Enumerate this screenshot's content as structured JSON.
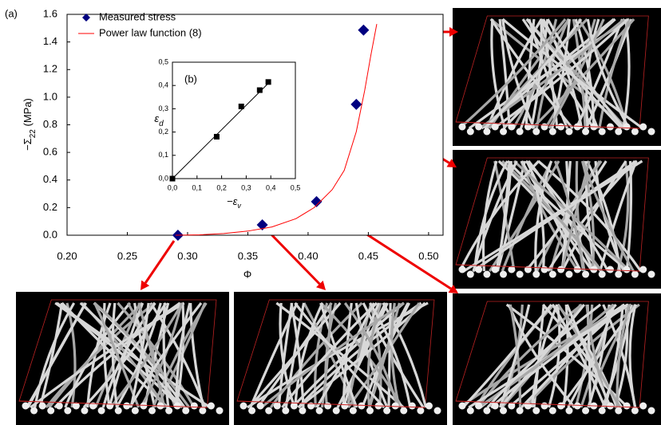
{
  "panel_label_a": "(a)",
  "chart_data": [
    {
      "type": "line",
      "ylabel": [
        "−Σ",
        "22",
        " (MPa)"
      ],
      "xlabel": "Φ",
      "xlim": [
        0.2,
        0.512
      ],
      "ylim": [
        0,
        1.6
      ],
      "xticks": [
        {
          "value": 0.2,
          "label": "0.20"
        },
        0.25,
        {
          "value": 0.3,
          "label": "0.30"
        },
        0.35,
        {
          "value": 0.4,
          "label": "0.40"
        },
        0.45,
        {
          "value": 0.5,
          "label": "0.50"
        }
      ],
      "yticks": [
        {
          "value": 0,
          "label": "0.0"
        },
        0.2,
        0.4,
        0.6,
        0.8,
        {
          "value": 1,
          "label": "1.0"
        },
        1.2,
        1.4,
        1.6
      ],
      "legend": "top-left",
      "series": [
        {
          "name": "Measured stress",
          "style": "markers",
          "marker": "diamond",
          "color": "#000080",
          "x": [
            0.292,
            0.362,
            0.407,
            0.44,
            0.446
          ],
          "values": [
            0,
            0.075,
            0.243,
            0.948,
            1.486
          ]
        },
        {
          "name": "Power law function (8)",
          "style": "line",
          "color": "#ff0000",
          "x": [
            0.29,
            0.31,
            0.33,
            0.35,
            0.37,
            0.39,
            0.405,
            0.42,
            0.43,
            0.44,
            0.447,
            0.452,
            0.457
          ],
          "values": [
            0,
            0.003,
            0.012,
            0.03,
            0.06,
            0.12,
            0.2,
            0.33,
            0.47,
            0.75,
            1.05,
            1.3,
            1.53
          ]
        }
      ]
    },
    {
      "type": "line",
      "panel_label": "(b)",
      "ylabel": [
        "ε",
        "d"
      ],
      "xlabel": [
        "−ε",
        "v"
      ],
      "xlim": [
        0,
        0.5
      ],
      "ylim": [
        0,
        0.5
      ],
      "xticks": [
        {
          "value": 0,
          "label": "0,0"
        },
        {
          "value": 0.1,
          "label": "0,1"
        },
        {
          "value": 0.2,
          "label": "0,2"
        },
        {
          "value": 0.3,
          "label": "0,3"
        },
        {
          "value": 0.4,
          "label": "0,4"
        },
        {
          "value": 0.5,
          "label": "0,5"
        }
      ],
      "yticks": [
        {
          "value": 0,
          "label": "0,0"
        },
        {
          "value": 0.1,
          "label": "0,1"
        },
        {
          "value": 0.2,
          "label": "0,2"
        },
        {
          "value": 0.3,
          "label": "0,3"
        },
        {
          "value": 0.4,
          "label": "0,4"
        },
        {
          "value": 0.5,
          "label": "0,5"
        }
      ],
      "series": [
        {
          "style": "markers",
          "marker": "square",
          "color": "#000000",
          "x": [
            0,
            0.18,
            0.28,
            0.355,
            0.39
          ],
          "values": [
            0,
            0.18,
            0.31,
            0.38,
            0.415
          ]
        },
        {
          "style": "line",
          "color": "#000000",
          "x": [
            0,
            0.4
          ],
          "values": [
            0,
            0.42
          ]
        }
      ]
    }
  ]
}
